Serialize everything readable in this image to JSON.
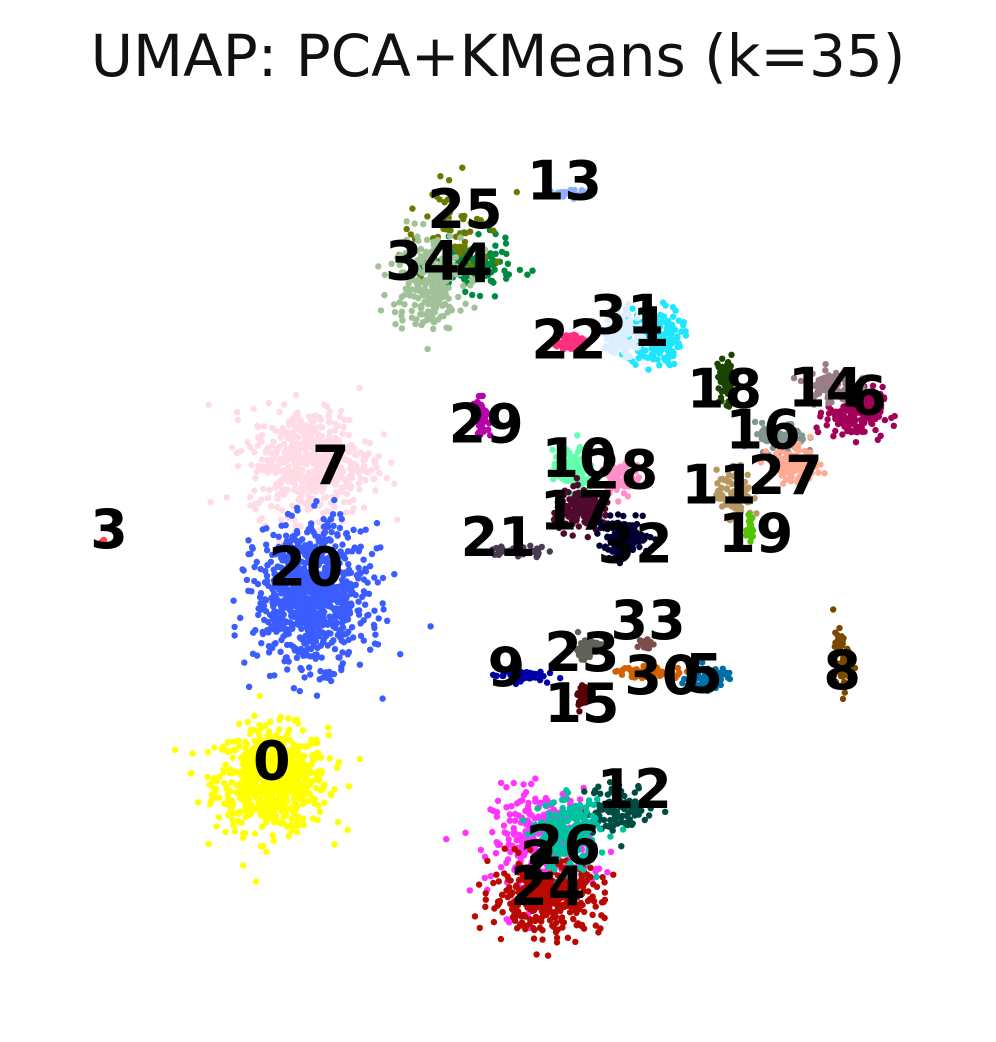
{
  "chart_data": {
    "type": "scatter",
    "title": "UMAP: PCA+KMeans (k=35)",
    "xlabel": "",
    "ylabel": "",
    "axes_visible": false,
    "grid": false,
    "legend": "none (cluster numbers drawn on plot)",
    "xlim": [
      0,
      100
    ],
    "ylim": [
      0,
      100
    ],
    "series": [
      {
        "name": "0",
        "label": "0",
        "color": "#ffff00",
        "center": [
          25.2,
          24.8
        ],
        "spread": [
          5.5,
          5.2
        ],
        "label_pos": [
          25.2,
          26.4
        ],
        "n": 700
      },
      {
        "name": "1",
        "label": "1",
        "color": "#1ee6ff",
        "center": [
          66.8,
          74.5
        ],
        "spread": [
          2.6,
          3.0
        ],
        "label_pos": [
          66.4,
          75.1
        ],
        "n": 180
      },
      {
        "name": "2",
        "label": "2",
        "color": "#ff34ff",
        "center": [
          54.5,
          17.6
        ],
        "spread": [
          5.0,
          5.5
        ],
        "label_pos": [
          54.2,
          15.2
        ],
        "n": 320
      },
      {
        "name": "3",
        "label": "3",
        "color": "#ff4a46",
        "center": [
          7.0,
          51.5
        ],
        "spread": [
          0.4,
          0.4
        ],
        "label_pos": [
          7.5,
          52.4
        ],
        "n": 6
      },
      {
        "name": "4",
        "label": "4",
        "color": "#008941",
        "center": [
          47.0,
          82.5
        ],
        "spread": [
          4.0,
          2.5
        ],
        "label_pos": [
          47.2,
          82.3
        ],
        "n": 130
      },
      {
        "name": "5",
        "label": "5",
        "color": "#006fa6",
        "center": [
          72.5,
          36.2
        ],
        "spread": [
          2.0,
          1.2
        ],
        "label_pos": [
          72.2,
          36.2
        ],
        "n": 70
      },
      {
        "name": "6",
        "label": "6",
        "color": "#a30059",
        "center": [
          88.5,
          66.0
        ],
        "spread": [
          2.8,
          2.6
        ],
        "label_pos": [
          90.0,
          67.4
        ],
        "n": 180
      },
      {
        "name": "7",
        "label": "7",
        "color": "#ffdbe5",
        "center": [
          29.5,
          60.5
        ],
        "spread": [
          6.0,
          5.5
        ],
        "label_pos": [
          31.6,
          59.6
        ],
        "n": 520
      },
      {
        "name": "8",
        "label": "8",
        "color": "#7a4900",
        "center": [
          87.2,
          38.0
        ],
        "spread": [
          0.9,
          3.0
        ],
        "label_pos": [
          87.2,
          36.6
        ],
        "n": 60
      },
      {
        "name": "9",
        "label": "9",
        "color": "#0000a6",
        "center": [
          52.0,
          36.5
        ],
        "spread": [
          2.5,
          0.6
        ],
        "label_pos": [
          50.7,
          36.9
        ],
        "n": 50
      },
      {
        "name": "10",
        "label": "10",
        "color": "#63ffac",
        "center": [
          58.0,
          59.5
        ],
        "spread": [
          2.0,
          2.0
        ],
        "label_pos": [
          58.6,
          60.4
        ],
        "n": 120
      },
      {
        "name": "11",
        "label": "11",
        "color": "#b79762",
        "center": [
          75.5,
          57.0
        ],
        "spread": [
          1.8,
          2.5
        ],
        "label_pos": [
          73.8,
          57.4
        ],
        "n": 90
      },
      {
        "name": "12",
        "label": "12",
        "color": "#004d43",
        "center": [
          63.0,
          21.5
        ],
        "spread": [
          3.5,
          2.5
        ],
        "label_pos": [
          64.6,
          23.2
        ],
        "n": 100
      },
      {
        "name": "13",
        "label": "13",
        "color": "#8fb0ff",
        "center": [
          57.5,
          90.7
        ],
        "spread": [
          1.5,
          0.4
        ],
        "label_pos": [
          57.0,
          91.6
        ],
        "n": 30
      },
      {
        "name": "14",
        "label": "14",
        "color": "#997d87",
        "center": [
          86.0,
          69.0
        ],
        "spread": [
          2.5,
          1.8
        ],
        "label_pos": [
          85.4,
          68.3
        ],
        "n": 90
      },
      {
        "name": "15",
        "label": "15",
        "color": "#5a0007",
        "center": [
          59.0,
          34.0
        ],
        "spread": [
          0.6,
          1.2
        ],
        "label_pos": [
          58.9,
          32.9
        ],
        "n": 30
      },
      {
        "name": "16",
        "label": "16",
        "color": "#809693",
        "center": [
          80.5,
          63.0
        ],
        "spread": [
          2.5,
          1.6
        ],
        "label_pos": [
          78.6,
          63.6
        ],
        "n": 70
      },
      {
        "name": "17",
        "label": "17",
        "color": "#4f0a2e",
        "center": [
          59.0,
          55.0
        ],
        "spread": [
          2.8,
          2.0
        ],
        "label_pos": [
          58.4,
          54.5
        ],
        "n": 150
      },
      {
        "name": "18",
        "label": "18",
        "color": "#1b4400",
        "center": [
          74.5,
          69.5
        ],
        "spread": [
          0.9,
          2.8
        ],
        "label_pos": [
          74.4,
          68.2
        ],
        "n": 70
      },
      {
        "name": "19",
        "label": "19",
        "color": "#4fc601",
        "center": [
          77.2,
          53.0
        ],
        "spread": [
          0.3,
          1.3
        ],
        "label_pos": [
          77.8,
          52.0
        ],
        "n": 25
      },
      {
        "name": "20",
        "label": "20",
        "color": "#3b5dff",
        "center": [
          29.5,
          45.5
        ],
        "spread": [
          5.5,
          7.0
        ],
        "label_pos": [
          28.9,
          48.2
        ],
        "n": 900
      },
      {
        "name": "21",
        "label": "21",
        "color": "#4a3b53",
        "center": [
          52.0,
          50.4
        ],
        "spread": [
          3.0,
          0.6
        ],
        "label_pos": [
          49.8,
          51.5
        ],
        "n": 45
      },
      {
        "name": "22",
        "label": "22",
        "color": "#ff2f80",
        "center": [
          57.8,
          74.0
        ],
        "spread": [
          1.4,
          0.9
        ],
        "label_pos": [
          57.5,
          73.7
        ],
        "n": 70
      },
      {
        "name": "23",
        "label": "23",
        "color": "#61615a",
        "center": [
          59.5,
          39.5
        ],
        "spread": [
          1.5,
          1.1
        ],
        "label_pos": [
          58.9,
          38.6
        ],
        "n": 60
      },
      {
        "name": "24",
        "label": "24",
        "color": "#ba0900",
        "center": [
          55.0,
          11.5
        ],
        "spread": [
          5.5,
          3.5
        ],
        "label_pos": [
          55.2,
          12.3
        ],
        "n": 360
      },
      {
        "name": "25",
        "label": "25",
        "color": "#6b7900",
        "center": [
          45.0,
          86.0
        ],
        "spread": [
          5.0,
          5.0
        ],
        "label_pos": [
          46.2,
          88.4
        ],
        "n": 70
      },
      {
        "name": "26",
        "label": "26",
        "color": "#00c2a0",
        "center": [
          57.5,
          18.5
        ],
        "spread": [
          3.0,
          3.5
        ],
        "label_pos": [
          56.9,
          16.9
        ],
        "n": 240
      },
      {
        "name": "27",
        "label": "27",
        "color": "#ffaa92",
        "center": [
          82.0,
          60.0
        ],
        "spread": [
          2.6,
          1.8
        ],
        "label_pos": [
          81.0,
          58.5
        ],
        "n": 110
      },
      {
        "name": "28",
        "label": "28",
        "color": "#ff90c9",
        "center": [
          63.0,
          58.5
        ],
        "spread": [
          1.8,
          2.0
        ],
        "label_pos": [
          63.1,
          59.1
        ],
        "n": 80
      },
      {
        "name": "29",
        "label": "29",
        "color": "#b903aa",
        "center": [
          48.0,
          65.5
        ],
        "spread": [
          0.7,
          1.8
        ],
        "label_pos": [
          48.5,
          64.3
        ],
        "n": 50
      },
      {
        "name": "30",
        "label": "30",
        "color": "#d16100",
        "center": [
          66.5,
          36.8
        ],
        "spread": [
          3.5,
          0.6
        ],
        "label_pos": [
          67.6,
          36.0
        ],
        "n": 70
      },
      {
        "name": "31",
        "label": "31",
        "color": "#ddefff",
        "center": [
          63.5,
          74.8
        ],
        "spread": [
          2.0,
          2.4
        ],
        "label_pos": [
          63.8,
          76.5
        ],
        "n": 120
      },
      {
        "name": "32",
        "label": "32",
        "color": "#000035",
        "center": [
          63.5,
          52.0
        ],
        "spread": [
          2.5,
          1.8
        ],
        "label_pos": [
          64.7,
          50.8
        ],
        "n": 120
      },
      {
        "name": "33",
        "label": "33",
        "color": "#7b4f4b",
        "center": [
          66.0,
          40.0
        ],
        "spread": [
          0.6,
          0.6
        ],
        "label_pos": [
          66.1,
          42.2
        ],
        "n": 20
      },
      {
        "name": "34",
        "label": "34",
        "color": "#a1c299",
        "center": [
          42.0,
          81.0
        ],
        "spread": [
          3.5,
          5.0
        ],
        "label_pos": [
          41.6,
          82.6
        ],
        "n": 260
      }
    ]
  }
}
